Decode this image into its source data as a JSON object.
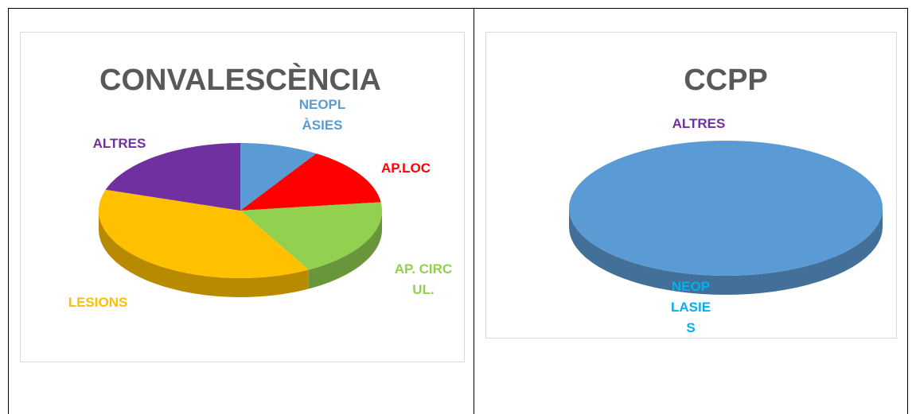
{
  "chart_data": [
    {
      "type": "pie3d",
      "title": "CONVALESCÈNCIA",
      "categories": [
        "NEOPLÀSIES",
        "AP.LOC",
        "AP. CIRCUL.",
        "LESIONS",
        "ALTRES"
      ],
      "values": [
        9,
        14,
        19,
        38,
        20
      ],
      "colors": [
        "#5b9bd5",
        "#ff0000",
        "#92d050",
        "#ffc000",
        "#7030a0"
      ],
      "label_colors": [
        "#5b9bd5",
        "#ff0000",
        "#92d050",
        "#ffc000",
        "#7030a0"
      ]
    },
    {
      "type": "pie3d",
      "title": "CCPP",
      "categories": [
        "NEOPLASIES",
        "ALTRES"
      ],
      "values": [
        100,
        0
      ],
      "colors": [
        "#5b9bd5",
        "#7030a0"
      ],
      "label_colors": [
        "#00b0f0",
        "#7030a0"
      ]
    }
  ]
}
